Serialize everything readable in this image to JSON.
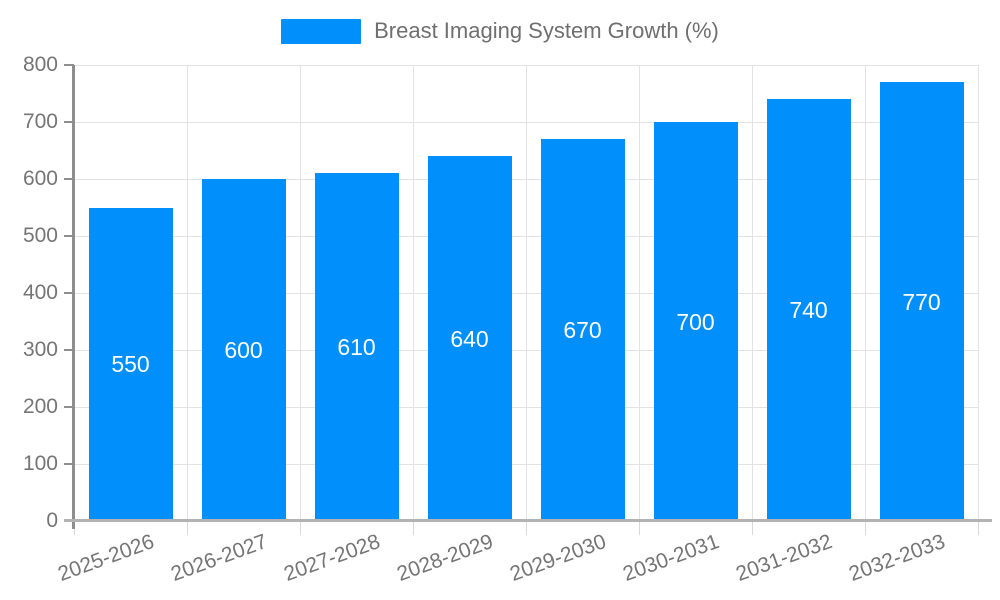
{
  "chart_data": {
    "type": "bar",
    "title": "Breast Imaging System Growth (%)",
    "categories": [
      "2025-2026",
      "2026-2027",
      "2027-2028",
      "2028-2029",
      "2029-2030",
      "2030-2031",
      "2031-2032",
      "2032-2033"
    ],
    "values": [
      550,
      600,
      610,
      640,
      670,
      700,
      740,
      770
    ],
    "bar_labels": [
      "550",
      "600",
      "610",
      "640",
      "670",
      "700",
      "740",
      "770"
    ],
    "xlabel": "",
    "ylabel": "",
    "ylim": [
      0,
      800
    ],
    "y_ticks": [
      0,
      100,
      200,
      300,
      400,
      500,
      600,
      700,
      800
    ],
    "grid": true,
    "legend_position": "top-center",
    "colors": {
      "bar": "#008FFB",
      "grid": "#e3e3e3",
      "y_axis_line": "#8e8e8e",
      "x_axis_line": "#b2b2b2",
      "tick_text": "#757575",
      "legend_text": "#6f6f6f",
      "value_text": "#ffffff",
      "background": "#ffffff"
    }
  }
}
